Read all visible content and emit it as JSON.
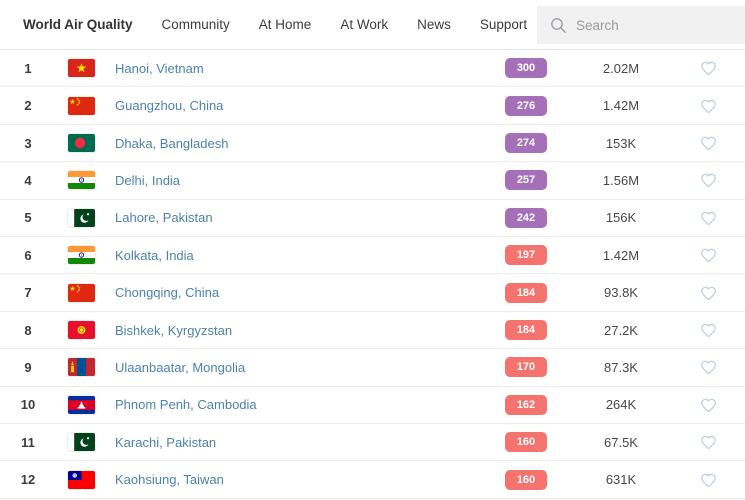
{
  "nav": {
    "items": [
      {
        "label": "World Air Quality",
        "active": true
      },
      {
        "label": "Community",
        "active": false
      },
      {
        "label": "At Home",
        "active": false
      },
      {
        "label": "At Work",
        "active": false
      },
      {
        "label": "News",
        "active": false
      },
      {
        "label": "Support",
        "active": false
      }
    ],
    "search_placeholder": "Search"
  },
  "colors": {
    "aqi_very_unhealthy": "#a670b8",
    "aqi_unhealthy": "#f4736f",
    "city_link": "#4d82b0",
    "heart_outline": "#b7cde6"
  },
  "ranking": {
    "rows": [
      {
        "rank": "1",
        "flag": "vn",
        "city": "Hanoi, Vietnam",
        "aqi": "300",
        "level": "very-unhealthy",
        "followers": "2.02M"
      },
      {
        "rank": "2",
        "flag": "cn",
        "city": "Guangzhou, China",
        "aqi": "276",
        "level": "very-unhealthy",
        "followers": "1.42M"
      },
      {
        "rank": "3",
        "flag": "bd",
        "city": "Dhaka, Bangladesh",
        "aqi": "274",
        "level": "very-unhealthy",
        "followers": "153K"
      },
      {
        "rank": "4",
        "flag": "in",
        "city": "Delhi, India",
        "aqi": "257",
        "level": "very-unhealthy",
        "followers": "1.56M"
      },
      {
        "rank": "5",
        "flag": "pk",
        "city": "Lahore, Pakistan",
        "aqi": "242",
        "level": "very-unhealthy",
        "followers": "156K"
      },
      {
        "rank": "6",
        "flag": "in",
        "city": "Kolkata, India",
        "aqi": "197",
        "level": "unhealthy",
        "followers": "1.42M"
      },
      {
        "rank": "7",
        "flag": "cn",
        "city": "Chongqing, China",
        "aqi": "184",
        "level": "unhealthy",
        "followers": "93.8K"
      },
      {
        "rank": "8",
        "flag": "kg",
        "city": "Bishkek, Kyrgyzstan",
        "aqi": "184",
        "level": "unhealthy",
        "followers": "27.2K"
      },
      {
        "rank": "9",
        "flag": "mn",
        "city": "Ulaanbaatar, Mongolia",
        "aqi": "170",
        "level": "unhealthy",
        "followers": "87.3K"
      },
      {
        "rank": "10",
        "flag": "kh",
        "city": "Phnom Penh, Cambodia",
        "aqi": "162",
        "level": "unhealthy",
        "followers": "264K"
      },
      {
        "rank": "11",
        "flag": "pk",
        "city": "Karachi, Pakistan",
        "aqi": "160",
        "level": "unhealthy",
        "followers": "67.5K"
      },
      {
        "rank": "12",
        "flag": "tw",
        "city": "Kaohsiung, Taiwan",
        "aqi": "160",
        "level": "unhealthy",
        "followers": "631K"
      }
    ]
  }
}
